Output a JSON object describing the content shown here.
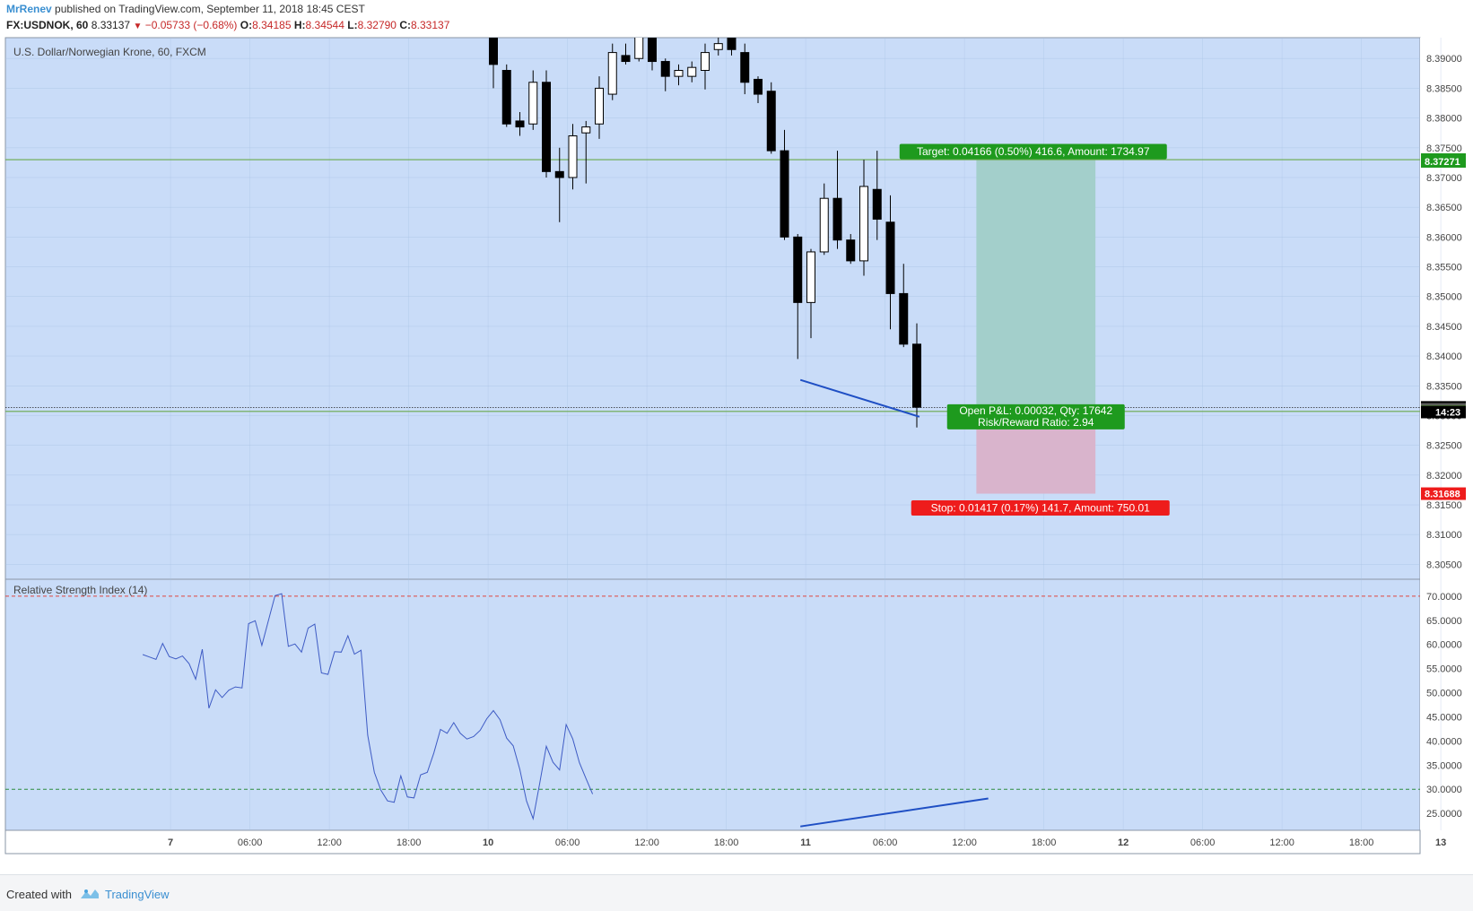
{
  "header": {
    "author": "MrRenev",
    "published_text": "published on TradingView.com, September 11, 2018 18:45 CEST",
    "symbol": "FX:USDNOK, 60",
    "last": "8.33137",
    "change": "−0.05733 (−0.68%)",
    "o_label": "O:",
    "o": "8.34185",
    "h_label": "H:",
    "h": "8.34544",
    "l_label": "L:",
    "l": "8.32790",
    "c_label": "C:",
    "c": "8.33137"
  },
  "footer": {
    "created_with": "Created with",
    "brand": "TradingView"
  },
  "colors": {
    "pane_bg": "#c9dcf8",
    "grid": "#a9c1e4",
    "level_line": "#6aaa4b",
    "trendline": "#1f4fc4",
    "rsi_line": "#3e5bc4",
    "rsi_upper": "#e0463f",
    "rsi_lower": "#2e8b3e",
    "target_zone": "#a3cfcb",
    "stop_zone": "#d9b4cc",
    "target_label": "#1e9a1e",
    "stop_label": "#ee1c1c",
    "pnl_label": "#1e9a1e"
  },
  "chart_data": [
    {
      "type": "candlestick",
      "title": "U.S. Dollar/Norwegian Krone, 60, FXCM",
      "ylim": [
        8.3025,
        8.3935
      ],
      "y_ticks": [
        "8.30500",
        "8.31000",
        "8.31500",
        "8.32000",
        "8.32500",
        "8.33000",
        "8.33500",
        "8.34000",
        "8.34500",
        "8.35000",
        "8.35500",
        "8.36000",
        "8.36500",
        "8.37000",
        "8.37500",
        "8.38000",
        "8.38500",
        "8.39000"
      ],
      "x_ticks": [
        {
          "i": -24.4,
          "label": "7",
          "bold": true
        },
        {
          "i": -18.4,
          "label": "06:00"
        },
        {
          "i": -12.4,
          "label": "12:00"
        },
        {
          "i": -6.4,
          "label": "18:00"
        },
        {
          "i": -0.4,
          "label": "10",
          "bold": true
        },
        {
          "i": 5.6,
          "label": "06:00"
        },
        {
          "i": 11.6,
          "label": "12:00"
        },
        {
          "i": 17.6,
          "label": "18:00"
        },
        {
          "i": 23.6,
          "label": "11",
          "bold": true
        },
        {
          "i": 29.6,
          "label": "06:00"
        },
        {
          "i": 35.6,
          "label": "12:00"
        },
        {
          "i": 41.6,
          "label": "18:00"
        },
        {
          "i": 47.6,
          "label": "12",
          "bold": true
        },
        {
          "i": 53.6,
          "label": "06:00"
        },
        {
          "i": 59.6,
          "label": "12:00"
        },
        {
          "i": 65.6,
          "label": "18:00"
        },
        {
          "i": 71.6,
          "label": "13",
          "bold": true
        }
      ],
      "candles": [
        {
          "o": 8.3985,
          "h": 8.401,
          "l": 8.385,
          "c": 8.389
        },
        {
          "o": 8.388,
          "h": 8.389,
          "l": 8.3785,
          "c": 8.379
        },
        {
          "o": 8.3795,
          "h": 8.381,
          "l": 8.377,
          "c": 8.3785
        },
        {
          "o": 8.379,
          "h": 8.388,
          "l": 8.378,
          "c": 8.386
        },
        {
          "o": 8.386,
          "h": 8.388,
          "l": 8.37,
          "c": 8.371
        },
        {
          "o": 8.371,
          "h": 8.375,
          "l": 8.3625,
          "c": 8.37
        },
        {
          "o": 8.37,
          "h": 8.379,
          "l": 8.368,
          "c": 8.377
        },
        {
          "o": 8.3775,
          "h": 8.3795,
          "l": 8.369,
          "c": 8.3785
        },
        {
          "o": 8.379,
          "h": 8.387,
          "l": 8.3765,
          "c": 8.385
        },
        {
          "o": 8.384,
          "h": 8.3925,
          "l": 8.383,
          "c": 8.391
        },
        {
          "o": 8.3905,
          "h": 8.3925,
          "l": 8.389,
          "c": 8.3895
        },
        {
          "o": 8.39,
          "h": 8.396,
          "l": 8.3895,
          "c": 8.394
        },
        {
          "o": 8.394,
          "h": 8.396,
          "l": 8.388,
          "c": 8.3895
        },
        {
          "o": 8.3895,
          "h": 8.39,
          "l": 8.3845,
          "c": 8.387
        },
        {
          "o": 8.387,
          "h": 8.389,
          "l": 8.3855,
          "c": 8.388
        },
        {
          "o": 8.387,
          "h": 8.3895,
          "l": 8.386,
          "c": 8.3885
        },
        {
          "o": 8.388,
          "h": 8.3925,
          "l": 8.3848,
          "c": 8.391
        },
        {
          "o": 8.3915,
          "h": 8.395,
          "l": 8.3905,
          "c": 8.3925
        },
        {
          "o": 8.3935,
          "h": 8.395,
          "l": 8.3905,
          "c": 8.3915
        },
        {
          "o": 8.391,
          "h": 8.3925,
          "l": 8.384,
          "c": 8.386
        },
        {
          "o": 8.3865,
          "h": 8.387,
          "l": 8.3825,
          "c": 8.384
        },
        {
          "o": 8.3845,
          "h": 8.386,
          "l": 8.374,
          "c": 8.3745
        },
        {
          "o": 8.3745,
          "h": 8.378,
          "l": 8.3595,
          "c": 8.36
        },
        {
          "o": 8.36,
          "h": 8.3605,
          "l": 8.3395,
          "c": 8.349
        },
        {
          "o": 8.349,
          "h": 8.358,
          "l": 8.343,
          "c": 8.3575
        },
        {
          "o": 8.3575,
          "h": 8.369,
          "l": 8.357,
          "c": 8.3665
        },
        {
          "o": 8.3665,
          "h": 8.3745,
          "l": 8.358,
          "c": 8.3595
        },
        {
          "o": 8.3595,
          "h": 8.3605,
          "l": 8.3555,
          "c": 8.356
        },
        {
          "o": 8.356,
          "h": 8.373,
          "l": 8.3535,
          "c": 8.3685
        },
        {
          "o": 8.368,
          "h": 8.3745,
          "l": 8.3595,
          "c": 8.363
        },
        {
          "o": 8.3625,
          "h": 8.367,
          "l": 8.3445,
          "c": 8.3505
        },
        {
          "o": 8.3505,
          "h": 8.3555,
          "l": 8.3415,
          "c": 8.342
        },
        {
          "o": 8.342,
          "h": 8.3455,
          "l": 8.328,
          "c": 8.3314
        }
      ],
      "levels": [
        {
          "price": 8.37301,
          "label": "8.37301",
          "color": "#1e9a1e",
          "text_color": "#ffffff"
        },
        {
          "price": 8.37271,
          "label": "8.37271",
          "color": "#1e9a1e",
          "text_color": "#ffffff"
        },
        {
          "price": 8.33137,
          "label": "8.33137",
          "color": "#000000",
          "text_color": "#ffffff"
        },
        {
          "price": 8.33105,
          "label": "8.33105",
          "color": "#5a5a5a",
          "text_color": "#ffffff"
        },
        {
          "price": 8.33069,
          "label": "8.33069",
          "color": "#6aaa4b",
          "text_color": "#ffffff"
        },
        {
          "price": 8.31688,
          "label": "8.31688",
          "color": "#ee1c1c",
          "text_color": "#ffffff"
        }
      ],
      "countdown": {
        "price": 8.3306,
        "label": "14:23"
      },
      "horizontal_lines": [
        8.373,
        8.3307
      ],
      "last_price": 8.33137,
      "position": {
        "x_start": 36.5,
        "x_end": 45.5,
        "target_price": 8.37301,
        "entry_price": 8.33069,
        "stop_price": 8.31688,
        "target_label": "Target: 0.04166 (0.50%) 416.6, Amount: 1734.97",
        "stop_label": "Stop: 0.01417 (0.17%) 141.7, Amount: 750.01",
        "pnl_label": "Open P&L: 0.00032, Qty: 17642",
        "rr_label": "Risk/Reward Ratio: 2.94"
      },
      "trendline": {
        "x1": 23.2,
        "y1": 8.336,
        "x2": 32.2,
        "y2": 8.3298
      }
    },
    {
      "type": "line",
      "title": "Relative Strength Index (14)",
      "ylim": [
        21.5,
        73.5
      ],
      "y_ticks": [
        "25.0000",
        "30.0000",
        "35.0000",
        "40.0000",
        "45.0000",
        "50.0000",
        "55.0000",
        "60.0000",
        "65.0000",
        "70.0000"
      ],
      "bands": {
        "upper": 70,
        "lower": 30
      },
      "x_start": -26.5,
      "x_step": 0.5,
      "values": [
        57.9,
        57.4,
        56.9,
        60.2,
        57.5,
        57.0,
        57.6,
        56.0,
        52.8,
        59.0,
        46.8,
        50.6,
        49.0,
        50.5,
        51.2,
        51.0,
        64.3,
        64.9,
        59.8,
        65.0,
        70.1,
        70.5,
        59.6,
        60.1,
        58.4,
        63.4,
        64.2,
        54.1,
        53.8,
        58.5,
        58.4,
        61.8,
        58.0,
        58.8,
        41.2,
        33.5,
        29.8,
        27.6,
        27.3,
        32.8,
        28.4,
        28.2,
        33.0,
        33.5,
        37.5,
        42.4,
        41.6,
        43.8,
        41.6,
        40.4,
        40.9,
        42.2,
        44.6,
        46.3,
        44.4,
        40.6,
        39.0,
        34.1,
        27.6,
        23.9,
        31.2,
        38.9,
        35.6,
        34.0,
        43.4,
        40.4,
        35.5,
        32.2,
        29.0
      ],
      "trendline": {
        "x1": 23.2,
        "y1": 22.3,
        "x2": 37.4,
        "y2": 28.1
      }
    }
  ]
}
